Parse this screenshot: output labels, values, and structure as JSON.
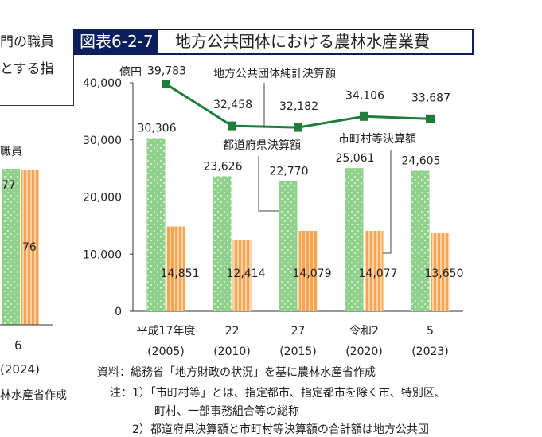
{
  "header": {
    "tag": "図表6-2-7",
    "title": "地方公共団体における農林水産業費"
  },
  "left_fragment": {
    "line1": "門の職員",
    "line2": "とする指",
    "legend_frag": "職員",
    "val_green": "77",
    "val_orange": "76",
    "x_label": "6",
    "x_sub": "(2024)",
    "source_frag": "林水産省作成"
  },
  "chart_data": {
    "type": "bar",
    "unit": "億円",
    "categories": [
      "平成17年度",
      "22",
      "27",
      "令和2",
      "5"
    ],
    "category_sub": [
      "(2005)",
      "(2010)",
      "(2015)",
      "(2020)",
      "(2023)"
    ],
    "ylim": [
      0,
      40000
    ],
    "yticks": [
      "0",
      "10,000",
      "20,000",
      "30,000",
      "40,000"
    ],
    "series": [
      {
        "name": "都道府県決算額",
        "values": [
          30306,
          23626,
          22770,
          25061,
          24605
        ],
        "labels": [
          "30,306",
          "23,626",
          "22,770",
          "25,061",
          "24,605"
        ],
        "color": "#8fd18a"
      },
      {
        "name": "市町村等決算額",
        "values": [
          14851,
          12414,
          14079,
          14077,
          13650
        ],
        "labels": [
          "14,851",
          "12,414",
          "14,079",
          "14,077",
          "13,650"
        ],
        "color": "#f6a452"
      },
      {
        "name": "地方公共団体純計決算額",
        "values": [
          39783,
          32458,
          32182,
          34106,
          33687
        ],
        "labels": [
          "39,783",
          "32,458",
          "32,182",
          "34,106",
          "33,687"
        ],
        "color": "#1e7d3a"
      }
    ]
  },
  "footer": {
    "source": "資料：総務省「地方財政の状況」を基に農林水産省作成",
    "note1a": "注：1）「市町村等」とは、指定都市、指定都市を除く市、特別区、",
    "note1b": "町村、一部事務組合等の総称",
    "note2": "2）都道府県決算額と市町村等決算額の合計額は地方公共団"
  }
}
